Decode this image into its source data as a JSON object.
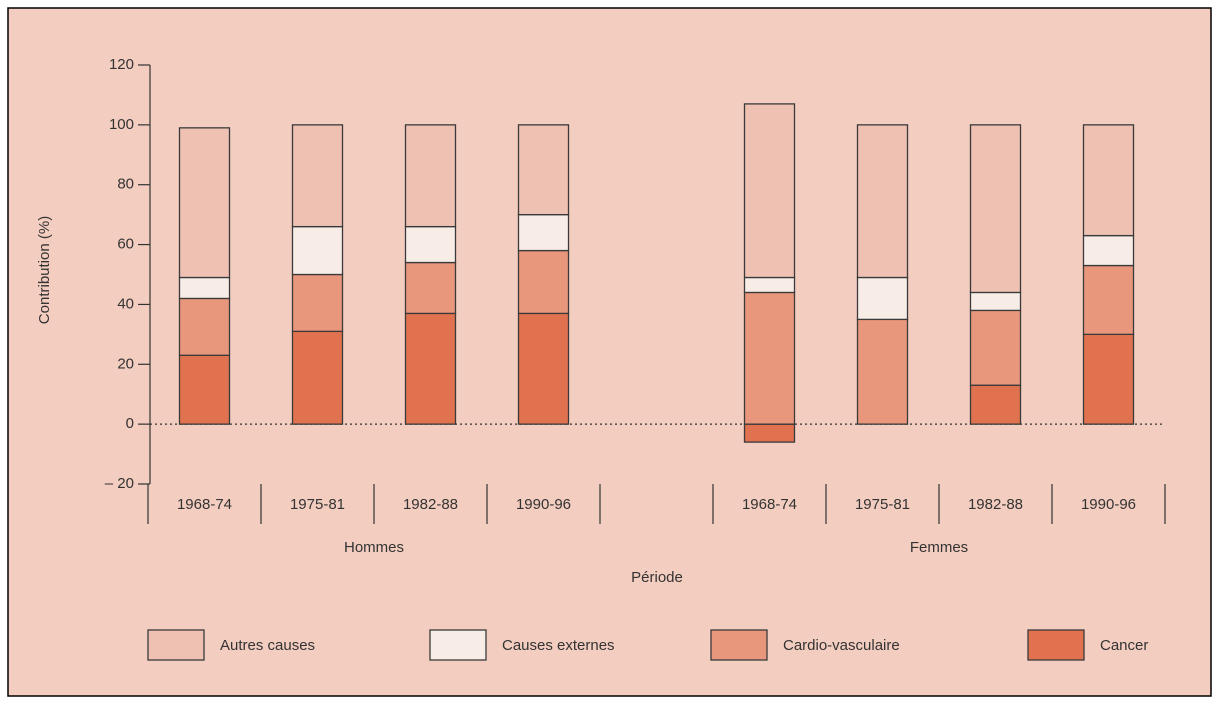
{
  "chart_data": {
    "type": "stacked-bar",
    "ylabel": "Contribution (%)",
    "xlabel": "Période",
    "groups": [
      "Hommes",
      "Femmes"
    ],
    "categories": [
      "1968-74",
      "1975-81",
      "1982-88",
      "1990-96",
      null,
      "1968-74",
      "1975-81",
      "1982-88",
      "1990-96"
    ],
    "series": [
      {
        "name": "Autres causes",
        "color": "#efc1b3",
        "values": [
          50,
          34,
          34,
          30,
          null,
          58,
          51,
          56,
          37
        ]
      },
      {
        "name": "Causes externes",
        "color": "#f7ece6",
        "values": [
          7,
          16,
          12,
          12,
          null,
          5,
          14,
          6,
          10
        ]
      },
      {
        "name": "Cardio-vasculaire",
        "color": "#e9977c",
        "values": [
          19,
          19,
          17,
          21,
          null,
          44,
          35,
          25,
          23
        ]
      },
      {
        "name": "Cancer",
        "color": "#e07250",
        "values": [
          23,
          31,
          37,
          37,
          null,
          -6,
          0,
          13,
          30
        ]
      }
    ],
    "ylim": [
      -20,
      120
    ],
    "yticks": [
      {
        "value": -20,
        "label": "– 20"
      },
      0,
      20,
      40,
      60,
      80,
      100,
      120
    ],
    "background": "#f3cdbf"
  }
}
